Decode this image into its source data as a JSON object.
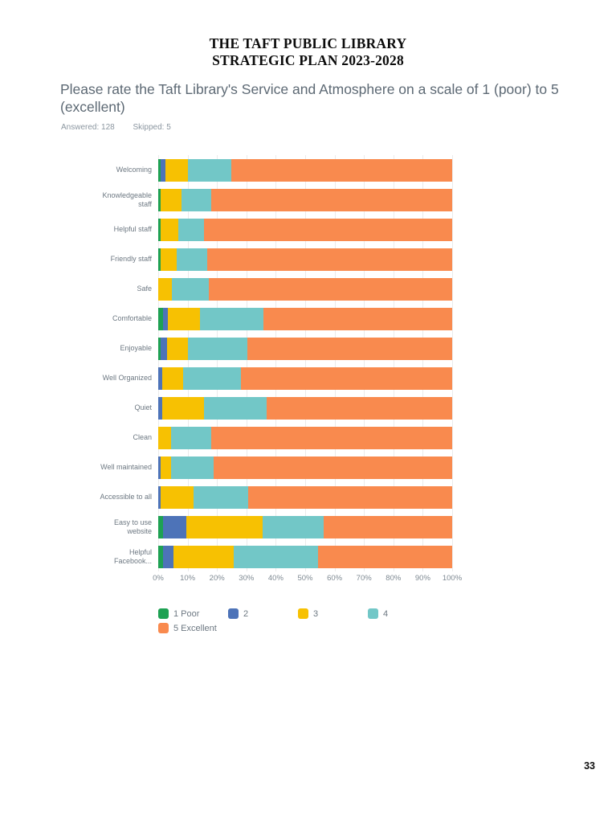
{
  "doc": {
    "title_line1": "THE TAFT PUBLIC LIBRARY",
    "title_line2": "STRATEGIC PLAN 2023-2028",
    "page_number": "33"
  },
  "survey": {
    "question": "Please rate the Taft Library's Service and Atmosphere on a scale of 1 (poor) to 5  (excellent)",
    "answered_label": "Answered: 128",
    "skipped_label": "Skipped: 5"
  },
  "chart_data": {
    "type": "bar",
    "orientation": "horizontal",
    "stacked": true,
    "unit": "percent",
    "grid": true,
    "title": "Please rate the Taft Library's Service and Atmosphere on a scale of 1 (poor) to 5 (excellent)",
    "xlabel": "",
    "ylabel": "",
    "xlim": [
      0,
      100
    ],
    "x_ticks": [
      "0%",
      "10%",
      "20%",
      "30%",
      "40%",
      "50%",
      "60%",
      "70%",
      "80%",
      "90%",
      "100%"
    ],
    "categories": [
      "Welcoming",
      "Knowledgeable staff",
      "Helpful staff",
      "Friendly staff",
      "Safe",
      "Comfortable",
      "Enjoyable",
      "Well Organized",
      "Quiet",
      "Clean",
      "Well maintained",
      "Accessible to all",
      "Easy to use website",
      "Helpful Facebook..."
    ],
    "series": [
      {
        "name": "1 Poor",
        "color": "#1ea153",
        "values": [
          0.8,
          0.8,
          0.8,
          0.8,
          0,
          1.6,
          0.8,
          0,
          0,
          0,
          0,
          0,
          1.6,
          1.6
        ]
      },
      {
        "name": "2",
        "color": "#4d73b8",
        "values": [
          1.6,
          0,
          0,
          0,
          0,
          1.8,
          2.1,
          1.4,
          1.5,
          0,
          0.7,
          0.7,
          8.1,
          3.6
        ]
      },
      {
        "name": "3",
        "color": "#f7c102",
        "values": [
          7.8,
          7.1,
          6.1,
          5.5,
          4.7,
          10.7,
          7.1,
          7.0,
          14.1,
          4.3,
          3.8,
          11.3,
          25.9,
          20.5
        ]
      },
      {
        "name": "4",
        "color": "#72c7c7",
        "values": [
          14.8,
          10.2,
          8.7,
          10.3,
          12.6,
          21.7,
          20.2,
          19.8,
          21.4,
          13.8,
          14.4,
          18.7,
          20.8,
          28.7
        ]
      },
      {
        "name": "5 Excellent",
        "color": "#f98a4e",
        "values": [
          75.0,
          81.9,
          84.4,
          83.4,
          82.7,
          64.2,
          69.8,
          71.8,
          63.0,
          81.9,
          81.1,
          69.3,
          43.6,
          45.6
        ]
      }
    ],
    "legend_rows": [
      [
        "1 Poor",
        "2",
        "3",
        "4"
      ],
      [
        "5 Excellent"
      ]
    ],
    "legend_position": "bottom-left"
  }
}
